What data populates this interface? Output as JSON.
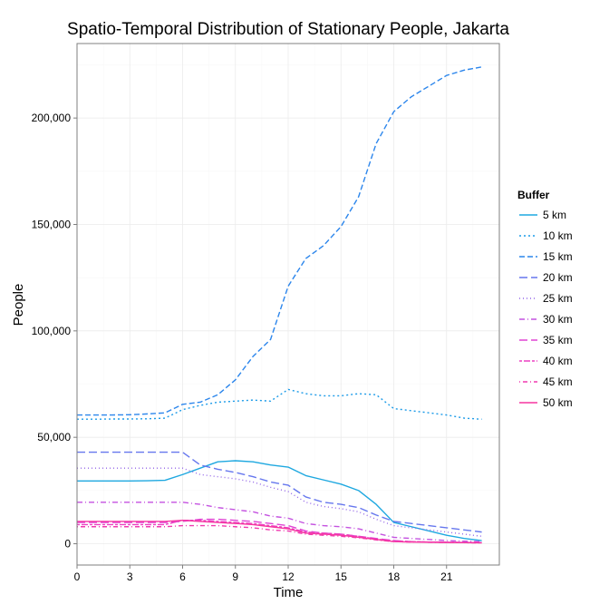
{
  "chart_data": {
    "type": "line",
    "title": "Spatio-Temporal Distribution of Stationary People, Jakarta",
    "xlabel": "Time",
    "ylabel": "People",
    "xlim": [
      0,
      24
    ],
    "ylim": [
      -10000,
      235000
    ],
    "x_ticks": [
      0,
      3,
      6,
      9,
      12,
      15,
      18,
      21
    ],
    "x_tick_labels": [
      "0",
      "3",
      "6",
      "9",
      "12",
      "15",
      "18",
      "21"
    ],
    "y_ticks": [
      0,
      50000,
      100000,
      150000,
      200000
    ],
    "y_tick_labels": [
      "0",
      "50,000",
      "100,000",
      "150,000",
      "200,000"
    ],
    "grid": true,
    "legend_title": "Buffer",
    "legend_position": "right",
    "x": [
      0,
      1,
      2,
      3,
      4,
      5,
      6,
      7,
      8,
      9,
      10,
      11,
      12,
      13,
      14,
      15,
      16,
      17,
      18,
      19,
      20,
      21,
      22,
      23
    ],
    "series": [
      {
        "name": "5 km",
        "color": "#1ea8e0",
        "dash": "solid",
        "values": [
          29500,
          29500,
          29500,
          29500,
          29600,
          29800,
          32500,
          35500,
          38500,
          39000,
          38500,
          37000,
          36000,
          32000,
          30000,
          28000,
          25000,
          18500,
          10000,
          8000,
          6000,
          4000,
          2500,
          1500
        ]
      },
      {
        "name": "10 km",
        "color": "#1c9be8",
        "dash": "dot",
        "values": [
          58500,
          58500,
          58600,
          58600,
          58700,
          59000,
          63000,
          65000,
          66500,
          67000,
          67500,
          67000,
          72500,
          70500,
          69500,
          69500,
          70500,
          70000,
          63500,
          62500,
          61500,
          60500,
          59000,
          58500
        ]
      },
      {
        "name": "15 km",
        "color": "#2c86ec",
        "dash": "dash",
        "values": [
          60500,
          60500,
          60500,
          60600,
          61000,
          61500,
          65500,
          66500,
          70000,
          77000,
          88000,
          96000,
          121000,
          134000,
          140000,
          149000,
          163000,
          188000,
          203000,
          210000,
          215000,
          220000,
          222500,
          224000
        ]
      },
      {
        "name": "20 km",
        "color": "#6677ee",
        "dash": "longdash",
        "values": [
          43000,
          43000,
          43000,
          43000,
          43000,
          43000,
          43000,
          37000,
          35000,
          33500,
          31500,
          29000,
          27500,
          22000,
          19500,
          18500,
          17000,
          13500,
          10500,
          9500,
          8500,
          7500,
          6500,
          5500
        ]
      },
      {
        "name": "25 km",
        "color": "#9466e8",
        "dash": "dotted",
        "values": [
          35500,
          35500,
          35500,
          35500,
          35500,
          35500,
          35500,
          32500,
          31500,
          30500,
          29000,
          26500,
          24500,
          19500,
          17500,
          16500,
          15000,
          11500,
          8500,
          7500,
          6500,
          5500,
          4500,
          3500
        ]
      },
      {
        "name": "30 km",
        "color": "#c452e0",
        "dash": "dashdot",
        "values": [
          19500,
          19500,
          19500,
          19500,
          19500,
          19500,
          19500,
          18500,
          17000,
          16000,
          15000,
          13000,
          12000,
          9500,
          8500,
          8000,
          7000,
          5000,
          3000,
          2500,
          2000,
          1500,
          1200,
          1000
        ]
      },
      {
        "name": "35 km",
        "color": "#e044d4",
        "dash": "longdash",
        "values": [
          10000,
          10000,
          10000,
          10000,
          10000,
          10000,
          10500,
          11500,
          11500,
          11000,
          10500,
          9500,
          8500,
          6000,
          5000,
          4500,
          3500,
          2500,
          1500,
          1000,
          800,
          700,
          600,
          500
        ]
      },
      {
        "name": "40 km",
        "color": "#ec40c2",
        "dash": "twodash",
        "values": [
          9000,
          9000,
          9000,
          9000,
          9000,
          9000,
          11000,
          11000,
          10500,
          10000,
          9500,
          8500,
          7500,
          5500,
          5000,
          4500,
          3500,
          2200,
          1300,
          1000,
          800,
          700,
          600,
          500
        ]
      },
      {
        "name": "45 km",
        "color": "#f03ab0",
        "dash": "dotdash",
        "values": [
          8000,
          8000,
          8000,
          8000,
          8000,
          8000,
          8500,
          8500,
          8500,
          8000,
          7500,
          6500,
          6000,
          4500,
          4000,
          3500,
          2800,
          1800,
          1000,
          800,
          700,
          600,
          500,
          400
        ]
      },
      {
        "name": "50 km",
        "color": "#f535a0",
        "dash": "solid",
        "values": [
          10500,
          10500,
          10500,
          10500,
          10500,
          10500,
          11000,
          10500,
          10000,
          9500,
          9000,
          8000,
          7000,
          5000,
          4500,
          4000,
          3000,
          2000,
          1000,
          800,
          700,
          600,
          500,
          400
        ]
      }
    ]
  }
}
